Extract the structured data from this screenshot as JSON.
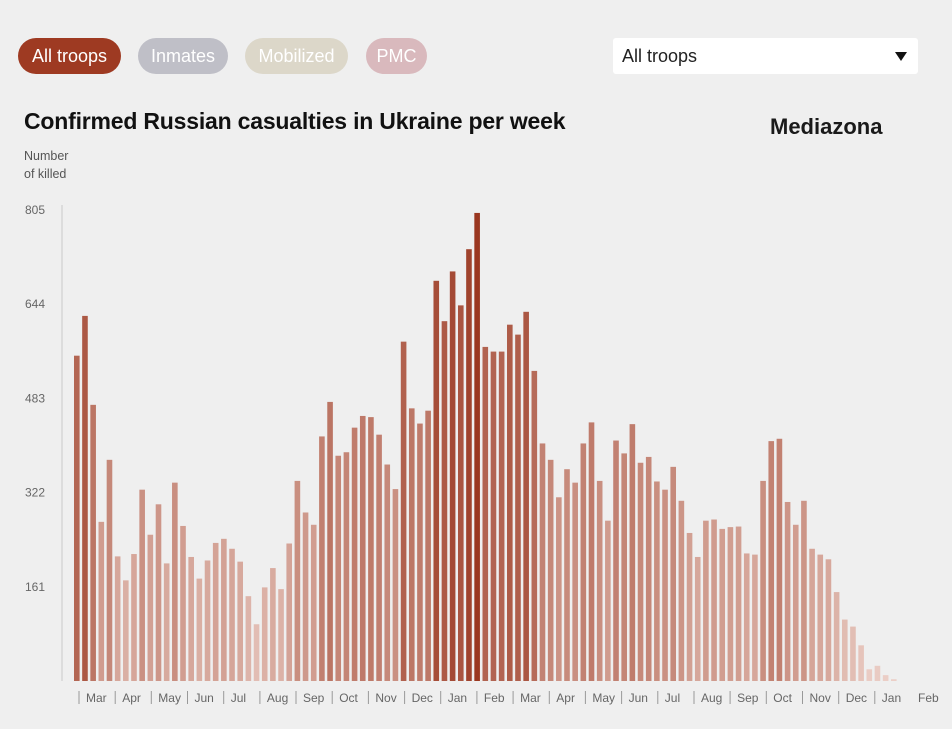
{
  "filters": {
    "pills": [
      {
        "label": "All troops",
        "color": "#9e3a22",
        "active": true
      },
      {
        "label": "Inmates",
        "color": "#bfbfc7",
        "active": false
      },
      {
        "label": "Mobilized",
        "color": "#dcd7c9",
        "active": false
      },
      {
        "label": "PMC",
        "color": "#d9b9bd",
        "active": false
      }
    ],
    "dropdown": {
      "selected": "All troops"
    }
  },
  "brand": "Mediazona",
  "chart_data": {
    "type": "bar",
    "title": "Confirmed Russian casualties in Ukraine per week",
    "ylabel": "Number of killed",
    "ylabel_lines": [
      "Number",
      "of killed"
    ],
    "xlabel": "",
    "ylim": [
      0,
      805
    ],
    "yticks": [
      805,
      644,
      483,
      322,
      161
    ],
    "grid": false,
    "month_labels": [
      "Mar",
      "Apr",
      "May",
      "Jun",
      "Jul",
      "Aug",
      "Sep",
      "Oct",
      "Nov",
      "Dec",
      "Jan",
      "Feb",
      "Mar",
      "Apr",
      "May",
      "Jun",
      "Jul",
      "Aug",
      "Sep",
      "Oct",
      "Nov",
      "Dec",
      "Jan",
      "Feb"
    ],
    "values": [
      556,
      624,
      472,
      272,
      378,
      213,
      172,
      217,
      327,
      250,
      302,
      201,
      339,
      265,
      212,
      175,
      206,
      236,
      243,
      226,
      204,
      145,
      97,
      160,
      193,
      157,
      235,
      342,
      288,
      267,
      418,
      477,
      385,
      391,
      433,
      453,
      451,
      421,
      370,
      328,
      580,
      466,
      440,
      462,
      684,
      615,
      700,
      642,
      738,
      800,
      571,
      563,
      563,
      609,
      592,
      631,
      530,
      406,
      378,
      314,
      362,
      339,
      406,
      442,
      342,
      274,
      411,
      389,
      439,
      373,
      383,
      341,
      327,
      366,
      308,
      253,
      212,
      274,
      276,
      260,
      263,
      264,
      218,
      216,
      342,
      410,
      414,
      306,
      267,
      308,
      226,
      216,
      208,
      152,
      105,
      93,
      61,
      20,
      26,
      10,
      3
    ],
    "colors": {
      "low": "#ecd0c8",
      "high": "#9a3720"
    }
  }
}
